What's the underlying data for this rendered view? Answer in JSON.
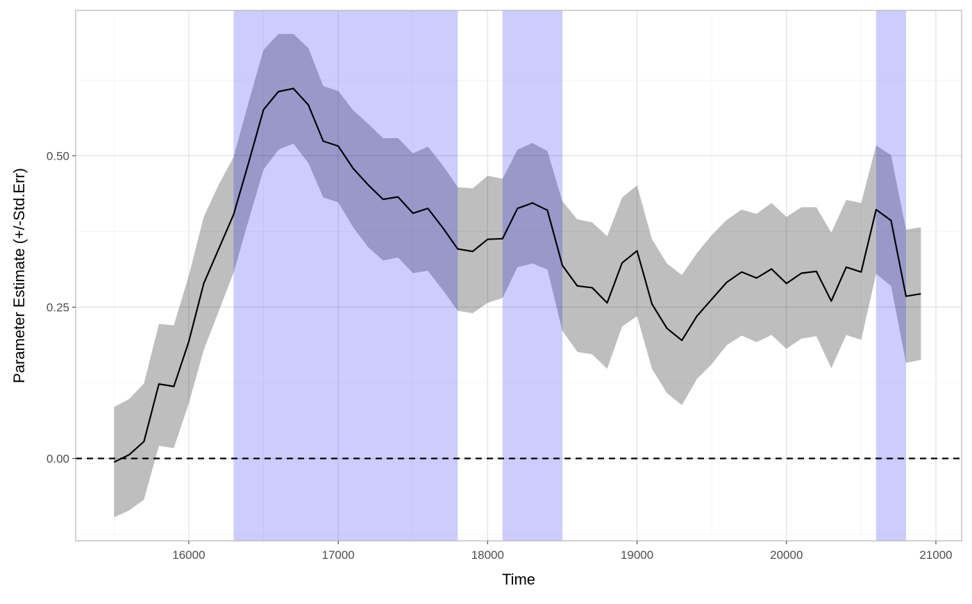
{
  "chart_data": {
    "type": "line",
    "title": "",
    "xlabel": "Time",
    "ylabel": "Parameter Estimate (+/-Std.Err)",
    "xlim": [
      15243,
      21172
    ],
    "ylim": [
      -0.136,
      0.74
    ],
    "x_ticks": [
      "16000",
      "17000",
      "18000",
      "19000",
      "20000",
      "21000"
    ],
    "x_tick_values": [
      16000,
      17000,
      18000,
      19000,
      20000,
      21000
    ],
    "y_ticks": [
      "0.00",
      "0.25",
      "0.50"
    ],
    "y_tick_values": [
      0,
      0.25,
      0.5
    ],
    "grid": true,
    "reference_line": {
      "y": 0,
      "style": "dashed",
      "color": "#000000"
    },
    "colors": {
      "line": "#000000",
      "ribbon": "#bebebe",
      "highlight": "#ccccff"
    },
    "highlight_ranges": [
      [
        16300,
        17800
      ],
      [
        18100,
        18500
      ],
      [
        20600,
        20800
      ]
    ],
    "x": [
      15500,
      15600,
      15700,
      15800,
      15900,
      16000,
      16100,
      16200,
      16300,
      16400,
      16500,
      16600,
      16700,
      16800,
      16900,
      17000,
      17100,
      17200,
      17300,
      17400,
      17500,
      17600,
      17700,
      17800,
      17900,
      18000,
      18100,
      18200,
      18300,
      18400,
      18500,
      18600,
      18700,
      18800,
      18900,
      19000,
      19100,
      19200,
      19300,
      19400,
      19500,
      19600,
      19700,
      19800,
      19900,
      20000,
      20100,
      20200,
      20300,
      20400,
      20500,
      20600,
      20700,
      20800,
      20900
    ],
    "estimate": [
      -0.006,
      0.006,
      0.028,
      0.123,
      0.119,
      0.193,
      0.289,
      0.346,
      0.403,
      0.488,
      0.576,
      0.606,
      0.611,
      0.584,
      0.524,
      0.516,
      0.479,
      0.452,
      0.428,
      0.432,
      0.405,
      0.413,
      0.381,
      0.346,
      0.342,
      0.362,
      0.363,
      0.413,
      0.422,
      0.41,
      0.319,
      0.285,
      0.282,
      0.257,
      0.323,
      0.343,
      0.255,
      0.215,
      0.195,
      0.235,
      0.263,
      0.291,
      0.308,
      0.298,
      0.313,
      0.289,
      0.306,
      0.309,
      0.26,
      0.316,
      0.308,
      0.411,
      0.393,
      0.268,
      0.272
    ],
    "upper": [
      0.085,
      0.098,
      0.124,
      0.222,
      0.22,
      0.302,
      0.399,
      0.452,
      0.498,
      0.588,
      0.675,
      0.701,
      0.701,
      0.678,
      0.615,
      0.607,
      0.575,
      0.553,
      0.529,
      0.529,
      0.504,
      0.515,
      0.484,
      0.448,
      0.446,
      0.467,
      0.462,
      0.51,
      0.521,
      0.508,
      0.425,
      0.395,
      0.39,
      0.367,
      0.431,
      0.451,
      0.362,
      0.322,
      0.303,
      0.339,
      0.369,
      0.394,
      0.411,
      0.404,
      0.422,
      0.399,
      0.415,
      0.415,
      0.373,
      0.427,
      0.422,
      0.517,
      0.501,
      0.378,
      0.382
    ],
    "lower": [
      -0.097,
      -0.086,
      -0.068,
      0.021,
      0.017,
      0.091,
      0.179,
      0.243,
      0.307,
      0.393,
      0.477,
      0.51,
      0.52,
      0.488,
      0.431,
      0.423,
      0.382,
      0.349,
      0.327,
      0.332,
      0.306,
      0.31,
      0.278,
      0.244,
      0.24,
      0.257,
      0.265,
      0.316,
      0.322,
      0.312,
      0.211,
      0.176,
      0.172,
      0.148,
      0.218,
      0.235,
      0.148,
      0.108,
      0.088,
      0.131,
      0.156,
      0.187,
      0.203,
      0.192,
      0.204,
      0.181,
      0.198,
      0.202,
      0.149,
      0.204,
      0.196,
      0.305,
      0.285,
      0.158,
      0.163
    ]
  }
}
